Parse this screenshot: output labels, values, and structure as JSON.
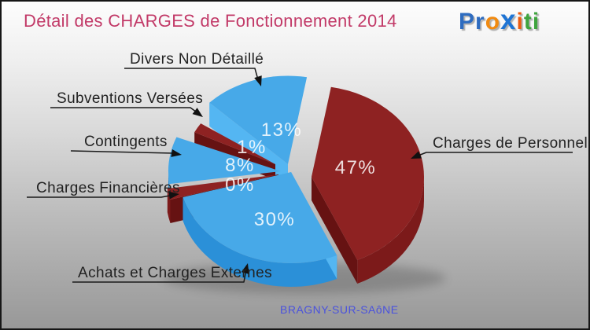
{
  "header": {
    "title": "Détail des CHARGES de Fonctionnement 2014",
    "title_color": "#c23a68"
  },
  "logo": {
    "name": "Proxiti",
    "letters": [
      {
        "ch": "P",
        "color": "#2e6cc0"
      },
      {
        "ch": "r",
        "color": "#2e6cc0"
      },
      {
        "ch": "o",
        "color": "#f18a10"
      },
      {
        "ch": "x",
        "color": "#1e74d4",
        "big": true
      },
      {
        "ch": "i",
        "color": "#ed5c10"
      },
      {
        "ch": "t",
        "color": "#3fa43e"
      },
      {
        "ch": "i",
        "color": "#3fa43e"
      }
    ]
  },
  "footer": {
    "text": "BRAGNY-SUR-SAôNE",
    "color": "#4a52dd"
  },
  "palette": {
    "blue": "#47a9e8",
    "blueSide": "#2b90d8",
    "blueEdge": "#54b6f2",
    "red": "#8e2222",
    "redSide": "#7c1a1a",
    "redEdge": "#661212"
  },
  "chart_data": {
    "type": "pie",
    "title": "Détail des CHARGES de Fonctionnement 2014",
    "unit": "%",
    "effect": "3d-exploded",
    "legend_position": "callouts",
    "location": "BRAGNY-SUR-SAôNE",
    "slices": [
      {
        "label": "Charges de Personnel",
        "value": 47,
        "display": "47%",
        "color": "#8e2222"
      },
      {
        "label": "Achats et Charges Externes",
        "value": 30,
        "display": "30%",
        "color": "#47a9e8"
      },
      {
        "label": "Charges Financières",
        "value": 0,
        "display": "0%",
        "color": "#8e2222"
      },
      {
        "label": "Contingents",
        "value": 8,
        "display": "8%",
        "color": "#47a9e8"
      },
      {
        "label": "Subventions Versées",
        "value": 1,
        "display": "1%",
        "color": "#8e2222"
      },
      {
        "label": "Divers Non Détaillé",
        "value": 13,
        "display": "13%",
        "color": "#47a9e8"
      }
    ]
  }
}
